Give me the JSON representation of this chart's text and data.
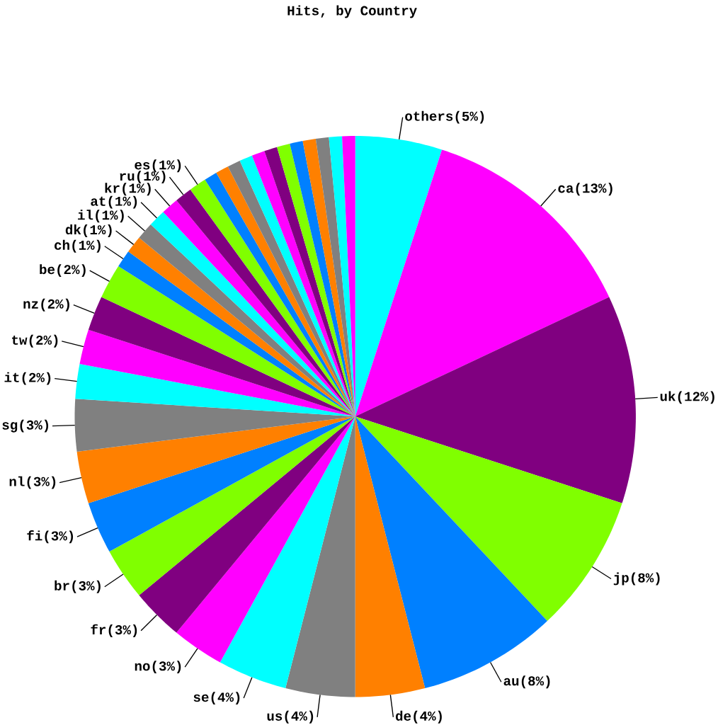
{
  "chart_data": {
    "type": "pie",
    "title": "Hits, by Country",
    "categories": [
      "others(5%)",
      "ca(13%)",
      "uk(12%)",
      "jp(8%)",
      "au(8%)",
      "de(4%)",
      "us(4%)",
      "se(4%)",
      "no(3%)",
      "fr(3%)",
      "br(3%)",
      "fi(3%)",
      "nl(3%)",
      "sg(3%)",
      "it(2%)",
      "tw(2%)",
      "nz(2%)",
      "be(2%)",
      "ch(1%)",
      "dk(1%)",
      "il(1%)",
      "at(1%)",
      "kr(1%)",
      "ru(1%)",
      "es(1%)",
      null,
      null,
      null,
      null,
      null,
      null,
      null,
      null,
      null,
      null,
      null,
      null
    ],
    "values": [
      5,
      13,
      12,
      8,
      8,
      4,
      4,
      4,
      3,
      3,
      3,
      3,
      3,
      3,
      2,
      2,
      2,
      2,
      1,
      1,
      1,
      1,
      1,
      1,
      1,
      0.75,
      0.75,
      0.75,
      0.75,
      0.75,
      0.75,
      0.75,
      0.75,
      0.75,
      0.75,
      0.75,
      0.75
    ],
    "colors": [
      "#00ffff",
      "#ff00ff",
      "#800080",
      "#80ff00",
      "#0080ff",
      "#ff8000",
      "#808080",
      "#00ffff",
      "#ff00ff",
      "#800080",
      "#80ff00",
      "#0080ff",
      "#ff8000",
      "#808080",
      "#00ffff",
      "#ff00ff",
      "#800080",
      "#80ff00",
      "#0080ff",
      "#ff8000",
      "#808080",
      "#00ffff",
      "#ff00ff",
      "#800080",
      "#80ff00",
      "#0080ff",
      "#ff8000",
      "#808080",
      "#00ffff",
      "#ff00ff",
      "#800080",
      "#80ff00",
      "#0080ff",
      "#ff8000",
      "#808080",
      "#00ffff",
      "#ff00ff"
    ]
  }
}
